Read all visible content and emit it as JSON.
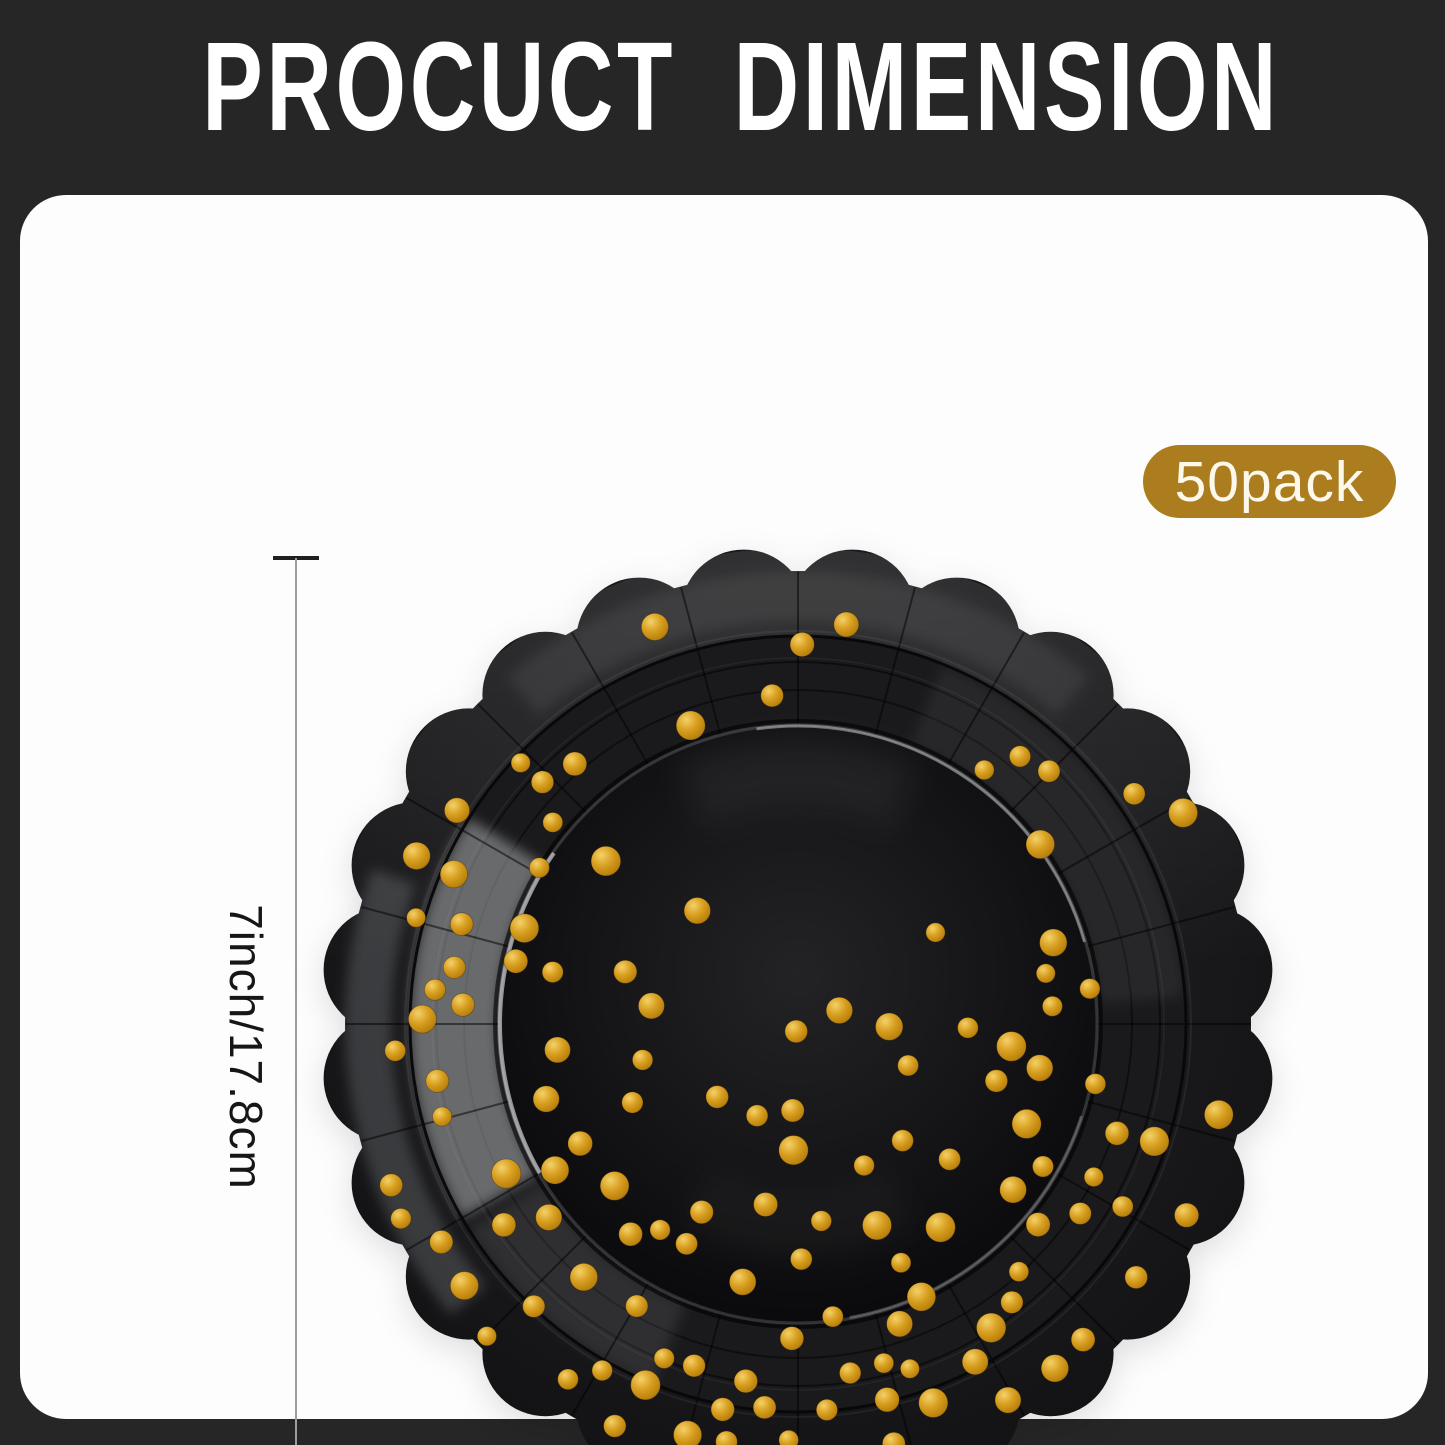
{
  "page": {
    "background": "#262626",
    "panel": "#fdfdfd"
  },
  "header": {
    "title": "PROCUCT  DIMENSION"
  },
  "badge": {
    "label": "50pack",
    "background": "#ac7d1e",
    "text_color": "#fcf8ec"
  },
  "dimension": {
    "label": "7inch/17.8cm",
    "line_color": "#9c9c9c",
    "cap_color": "#1f1f1f"
  },
  "plate": {
    "paper_black": "#1c1c1e",
    "well_black": "#151517",
    "gold_foil": "#d79e1f",
    "scallop_count": 24
  }
}
